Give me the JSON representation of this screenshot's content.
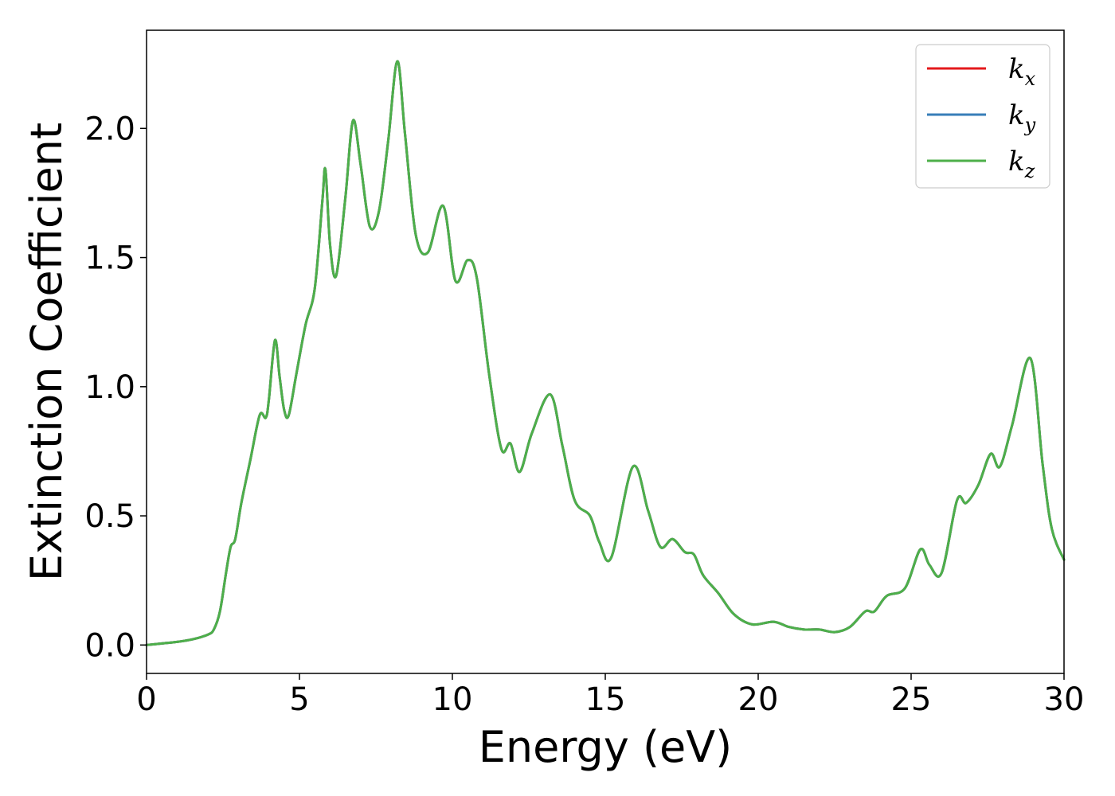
{
  "chart_data": {
    "type": "line",
    "xlabel": "Energy (eV)",
    "ylabel": "Extinction Coefficient",
    "xlim": [
      0,
      30
    ],
    "ylim": [
      -0.11,
      2.38
    ],
    "xticks": [
      0,
      5,
      10,
      15,
      20,
      25,
      30
    ],
    "yticks": [
      0.0,
      0.5,
      1.0,
      1.5,
      2.0
    ],
    "xtick_labels": [
      "0",
      "5",
      "10",
      "15",
      "20",
      "25",
      "30"
    ],
    "ytick_labels": [
      "0.0",
      "0.5",
      "1.0",
      "1.5",
      "2.0"
    ],
    "grid": false,
    "legend_position": "top-right",
    "series": [
      {
        "base": "k",
        "sub": "x",
        "color": "#e41a1c",
        "x": [
          0,
          0.5,
          1,
          1.5,
          2,
          2.2,
          2.4,
          2.6,
          2.75,
          2.9,
          3.1,
          3.4,
          3.7,
          3.9,
          4.0,
          4.2,
          4.35,
          4.5,
          4.65,
          4.9,
          5.2,
          5.5,
          5.75,
          5.85,
          6.0,
          6.2,
          6.5,
          6.75,
          7.0,
          7.3,
          7.6,
          7.9,
          8.2,
          8.45,
          8.8,
          9.2,
          9.7,
          10.1,
          10.5,
          10.8,
          11.2,
          11.6,
          11.9,
          12.2,
          12.6,
          13.2,
          13.6,
          14.0,
          14.5,
          14.8,
          15.2,
          15.9,
          16.4,
          16.8,
          17.2,
          17.6,
          17.9,
          18.2,
          18.7,
          19.2,
          19.8,
          20.5,
          21.0,
          21.5,
          22.0,
          22.5,
          23.0,
          23.5,
          23.8,
          24.2,
          24.8,
          25.3,
          25.6,
          26.0,
          26.5,
          26.8,
          27.2,
          27.6,
          27.9,
          28.3,
          28.9,
          29.3,
          29.6,
          30.0
        ],
        "y": [
          0.0,
          0.006,
          0.012,
          0.022,
          0.04,
          0.06,
          0.13,
          0.28,
          0.38,
          0.41,
          0.55,
          0.72,
          0.89,
          0.88,
          0.95,
          1.18,
          1.04,
          0.91,
          0.89,
          1.05,
          1.24,
          1.38,
          1.72,
          1.84,
          1.55,
          1.43,
          1.73,
          2.03,
          1.86,
          1.62,
          1.68,
          1.95,
          2.26,
          1.98,
          1.59,
          1.52,
          1.7,
          1.41,
          1.49,
          1.42,
          1.05,
          0.76,
          0.78,
          0.67,
          0.82,
          0.97,
          0.77,
          0.56,
          0.5,
          0.4,
          0.34,
          0.69,
          0.52,
          0.38,
          0.41,
          0.36,
          0.35,
          0.27,
          0.2,
          0.12,
          0.08,
          0.09,
          0.07,
          0.06,
          0.06,
          0.05,
          0.07,
          0.13,
          0.13,
          0.19,
          0.22,
          0.37,
          0.31,
          0.28,
          0.56,
          0.55,
          0.62,
          0.74,
          0.69,
          0.85,
          1.11,
          0.7,
          0.45,
          0.33
        ]
      },
      {
        "base": "k",
        "sub": "y",
        "color": "#377eb8",
        "x": [
          0,
          0.5,
          1,
          1.5,
          2,
          2.2,
          2.4,
          2.6,
          2.75,
          2.9,
          3.1,
          3.4,
          3.7,
          3.9,
          4.0,
          4.2,
          4.35,
          4.5,
          4.65,
          4.9,
          5.2,
          5.5,
          5.75,
          5.85,
          6.0,
          6.2,
          6.5,
          6.75,
          7.0,
          7.3,
          7.6,
          7.9,
          8.2,
          8.45,
          8.8,
          9.2,
          9.7,
          10.1,
          10.5,
          10.8,
          11.2,
          11.6,
          11.9,
          12.2,
          12.6,
          13.2,
          13.6,
          14.0,
          14.5,
          14.8,
          15.2,
          15.9,
          16.4,
          16.8,
          17.2,
          17.6,
          17.9,
          18.2,
          18.7,
          19.2,
          19.8,
          20.5,
          21.0,
          21.5,
          22.0,
          22.5,
          23.0,
          23.5,
          23.8,
          24.2,
          24.8,
          25.3,
          25.6,
          26.0,
          26.5,
          26.8,
          27.2,
          27.6,
          27.9,
          28.3,
          28.9,
          29.3,
          29.6,
          30.0
        ],
        "y": [
          0.0,
          0.006,
          0.012,
          0.022,
          0.04,
          0.06,
          0.13,
          0.28,
          0.38,
          0.41,
          0.55,
          0.72,
          0.89,
          0.88,
          0.95,
          1.18,
          1.04,
          0.91,
          0.89,
          1.05,
          1.24,
          1.38,
          1.72,
          1.84,
          1.55,
          1.43,
          1.73,
          2.03,
          1.86,
          1.62,
          1.68,
          1.95,
          2.26,
          1.98,
          1.59,
          1.52,
          1.7,
          1.41,
          1.49,
          1.42,
          1.05,
          0.76,
          0.78,
          0.67,
          0.82,
          0.97,
          0.77,
          0.56,
          0.5,
          0.4,
          0.34,
          0.69,
          0.52,
          0.38,
          0.41,
          0.36,
          0.35,
          0.27,
          0.2,
          0.12,
          0.08,
          0.09,
          0.07,
          0.06,
          0.06,
          0.05,
          0.07,
          0.13,
          0.13,
          0.19,
          0.22,
          0.37,
          0.31,
          0.28,
          0.56,
          0.55,
          0.62,
          0.74,
          0.69,
          0.85,
          1.11,
          0.7,
          0.45,
          0.33
        ]
      },
      {
        "base": "k",
        "sub": "z",
        "color": "#4daf4a",
        "x": [
          0,
          0.5,
          1,
          1.5,
          2,
          2.2,
          2.4,
          2.6,
          2.75,
          2.9,
          3.1,
          3.4,
          3.7,
          3.9,
          4.0,
          4.2,
          4.35,
          4.5,
          4.65,
          4.9,
          5.2,
          5.5,
          5.75,
          5.85,
          6.0,
          6.2,
          6.5,
          6.75,
          7.0,
          7.3,
          7.6,
          7.9,
          8.2,
          8.45,
          8.8,
          9.2,
          9.7,
          10.1,
          10.5,
          10.8,
          11.2,
          11.6,
          11.9,
          12.2,
          12.6,
          13.2,
          13.6,
          14.0,
          14.5,
          14.8,
          15.2,
          15.9,
          16.4,
          16.8,
          17.2,
          17.6,
          17.9,
          18.2,
          18.7,
          19.2,
          19.8,
          20.5,
          21.0,
          21.5,
          22.0,
          22.5,
          23.0,
          23.5,
          23.8,
          24.2,
          24.8,
          25.3,
          25.6,
          26.0,
          26.5,
          26.8,
          27.2,
          27.6,
          27.9,
          28.3,
          28.9,
          29.3,
          29.6,
          30.0
        ],
        "y": [
          0.0,
          0.006,
          0.012,
          0.022,
          0.04,
          0.06,
          0.13,
          0.28,
          0.38,
          0.41,
          0.55,
          0.72,
          0.89,
          0.88,
          0.95,
          1.18,
          1.04,
          0.91,
          0.89,
          1.05,
          1.24,
          1.38,
          1.72,
          1.84,
          1.55,
          1.43,
          1.73,
          2.03,
          1.86,
          1.62,
          1.68,
          1.95,
          2.26,
          1.98,
          1.59,
          1.52,
          1.7,
          1.41,
          1.49,
          1.42,
          1.05,
          0.76,
          0.78,
          0.67,
          0.82,
          0.97,
          0.77,
          0.56,
          0.5,
          0.4,
          0.34,
          0.69,
          0.52,
          0.38,
          0.41,
          0.36,
          0.35,
          0.27,
          0.2,
          0.12,
          0.08,
          0.09,
          0.07,
          0.06,
          0.06,
          0.05,
          0.07,
          0.13,
          0.13,
          0.19,
          0.22,
          0.37,
          0.31,
          0.28,
          0.56,
          0.55,
          0.62,
          0.74,
          0.69,
          0.85,
          1.11,
          0.7,
          0.45,
          0.33
        ]
      }
    ]
  }
}
